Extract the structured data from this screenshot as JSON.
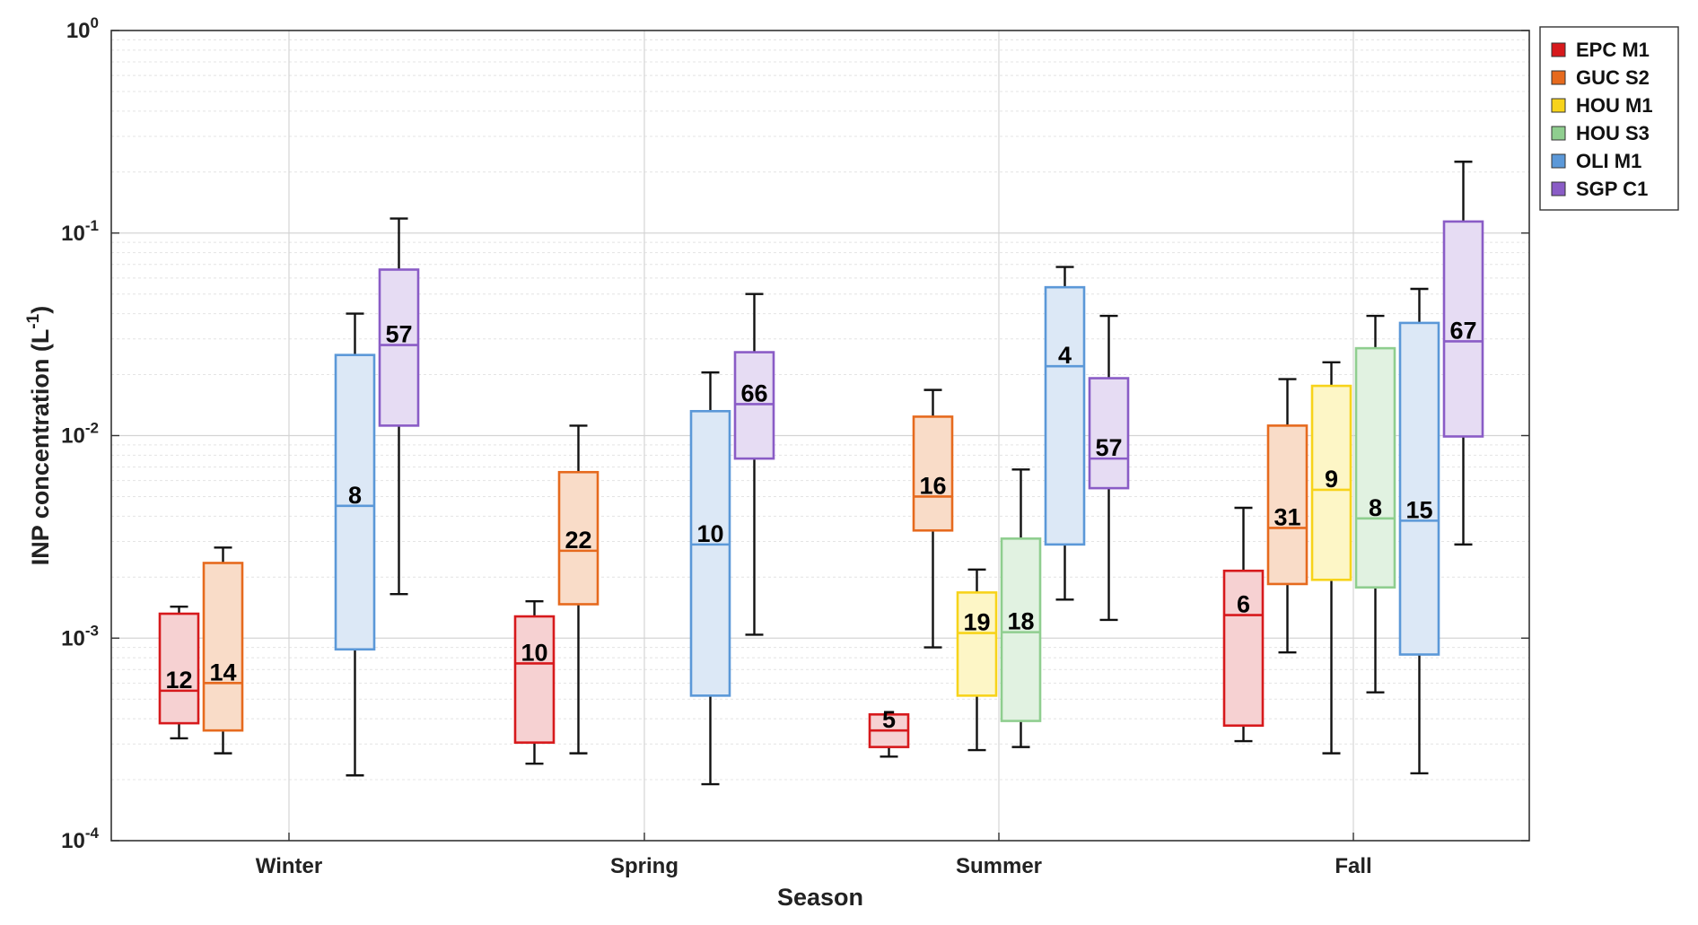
{
  "chart_data": {
    "type": "box",
    "xlabel": "Season",
    "ylabel": "INP concentration (L",
    "ylabel_superscript": "-1",
    "ylabel_close": ")",
    "yscale": "log",
    "ylim": [
      0.0001,
      1
    ],
    "y_ticks": [
      {
        "value": 0.0001,
        "base": "10",
        "exp": "-4"
      },
      {
        "value": 0.001,
        "base": "10",
        "exp": "-3"
      },
      {
        "value": 0.01,
        "base": "10",
        "exp": "-2"
      },
      {
        "value": 0.1,
        "base": "10",
        "exp": "-1"
      },
      {
        "value": 1,
        "base": "10",
        "exp": "0"
      }
    ],
    "categories": [
      "Winter",
      "Spring",
      "Summer",
      "Fall"
    ],
    "series": [
      {
        "name": "EPC M1",
        "color": "#d7191c",
        "fill": "#f6d1d2"
      },
      {
        "name": "GUC S2",
        "color": "#e66a1e",
        "fill": "#f9dcc8"
      },
      {
        "name": "HOU M1",
        "color": "#f7d31a",
        "fill": "#fdf6c6"
      },
      {
        "name": "HOU S3",
        "color": "#8fce8f",
        "fill": "#e1f2e1"
      },
      {
        "name": "OLI M1",
        "color": "#5b98d8",
        "fill": "#dce8f6"
      },
      {
        "name": "SGP C1",
        "color": "#8a5cc6",
        "fill": "#e6dcf3"
      }
    ],
    "boxes": [
      {
        "season": "Winter",
        "series": "EPC M1",
        "min": 0.00032,
        "q1": 0.00038,
        "median": 0.00055,
        "q3": 0.00132,
        "max": 0.00143,
        "n": "12"
      },
      {
        "season": "Winter",
        "series": "GUC S2",
        "min": 0.00027,
        "q1": 0.00035,
        "median": 0.0006,
        "q3": 0.00235,
        "max": 0.0028,
        "n": "14"
      },
      {
        "season": "Winter",
        "series": "OLI M1",
        "min": 0.00021,
        "q1": 0.00088,
        "median": 0.0045,
        "q3": 0.025,
        "max": 0.04,
        "n": "8"
      },
      {
        "season": "Winter",
        "series": "SGP C1",
        "min": 0.00165,
        "q1": 0.0112,
        "median": 0.028,
        "q3": 0.066,
        "max": 0.118,
        "n": "57"
      },
      {
        "season": "Spring",
        "series": "EPC M1",
        "min": 0.00024,
        "q1": 0.000305,
        "median": 0.00075,
        "q3": 0.00128,
        "max": 0.00152,
        "n": "10"
      },
      {
        "season": "Spring",
        "series": "GUC S2",
        "min": 0.00027,
        "q1": 0.00147,
        "median": 0.0027,
        "q3": 0.0066,
        "max": 0.0112,
        "n": "22"
      },
      {
        "season": "Spring",
        "series": "OLI M1",
        "min": 0.00019,
        "q1": 0.00052,
        "median": 0.0029,
        "q3": 0.0132,
        "max": 0.0205,
        "n": "10"
      },
      {
        "season": "Spring",
        "series": "SGP C1",
        "min": 0.00104,
        "q1": 0.0077,
        "median": 0.0143,
        "q3": 0.0258,
        "max": 0.05,
        "n": "66"
      },
      {
        "season": "Summer",
        "series": "EPC M1",
        "min": 0.00026,
        "q1": 0.00029,
        "median": 0.00035,
        "q3": 0.00042,
        "max": 0.00042,
        "n": "5"
      },
      {
        "season": "Summer",
        "series": "GUC S2",
        "min": 0.0009,
        "q1": 0.0034,
        "median": 0.005,
        "q3": 0.0124,
        "max": 0.0168,
        "n": "16"
      },
      {
        "season": "Summer",
        "series": "HOU M1",
        "min": 0.00028,
        "q1": 0.00052,
        "median": 0.00106,
        "q3": 0.00168,
        "max": 0.00218,
        "n": "19"
      },
      {
        "season": "Summer",
        "series": "HOU S3",
        "min": 0.00029,
        "q1": 0.00039,
        "median": 0.00107,
        "q3": 0.0031,
        "max": 0.0068,
        "n": "18"
      },
      {
        "season": "Summer",
        "series": "OLI M1",
        "min": 0.00155,
        "q1": 0.0029,
        "median": 0.022,
        "q3": 0.054,
        "max": 0.068,
        "n": "4"
      },
      {
        "season": "Summer",
        "series": "SGP C1",
        "min": 0.00123,
        "q1": 0.0055,
        "median": 0.0077,
        "q3": 0.0192,
        "max": 0.039,
        "n": "57"
      },
      {
        "season": "Fall",
        "series": "EPC M1",
        "min": 0.00031,
        "q1": 0.00037,
        "median": 0.0013,
        "q3": 0.00215,
        "max": 0.0044,
        "n": "6"
      },
      {
        "season": "Fall",
        "series": "GUC S2",
        "min": 0.00085,
        "q1": 0.00185,
        "median": 0.0035,
        "q3": 0.0112,
        "max": 0.019,
        "n": "31"
      },
      {
        "season": "Fall",
        "series": "HOU M1",
        "min": 0.00027,
        "q1": 0.00194,
        "median": 0.0054,
        "q3": 0.0176,
        "max": 0.023,
        "n": "9"
      },
      {
        "season": "Fall",
        "series": "HOU S3",
        "min": 0.00054,
        "q1": 0.00178,
        "median": 0.0039,
        "q3": 0.027,
        "max": 0.039,
        "n": "8"
      },
      {
        "season": "Fall",
        "series": "OLI M1",
        "min": 0.000215,
        "q1": 0.00083,
        "median": 0.0038,
        "q3": 0.036,
        "max": 0.053,
        "n": "15"
      },
      {
        "season": "Fall",
        "series": "SGP C1",
        "min": 0.0029,
        "q1": 0.0099,
        "median": 0.0292,
        "q3": 0.114,
        "max": 0.225,
        "n": "67"
      }
    ],
    "grid": true,
    "legend_position": "outside-top-right"
  }
}
